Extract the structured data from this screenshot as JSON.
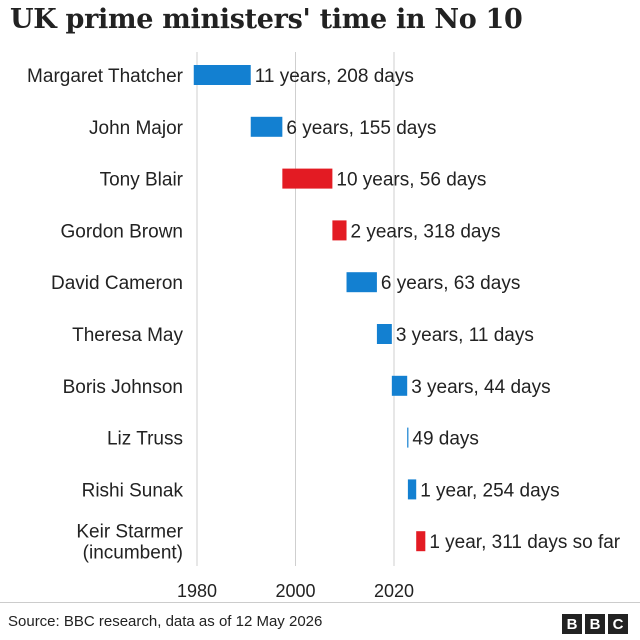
{
  "title": "UK prime ministers' time in No 10",
  "source": "Source: BBC research, data as of 12 May 2026",
  "logo": "BBC",
  "chart_data": {
    "type": "bar",
    "orientation": "horizontal-range",
    "title": "UK prime ministers' time in No 10",
    "xlabel": "",
    "ylabel": "",
    "xlim": [
      1975,
      2030
    ],
    "xticks": [
      "1980",
      "2000",
      "2020"
    ],
    "grid": true,
    "colors": {
      "Conservative": "#1380d1",
      "Labour": "#e31b23"
    },
    "bars": [
      {
        "label": [
          "Margaret Thatcher"
        ],
        "start": 1979.34,
        "end": 1990.91,
        "party": "Conservative",
        "duration": "11 years, 208 days"
      },
      {
        "label": [
          "John Major"
        ],
        "start": 1990.91,
        "end": 1997.33,
        "party": "Conservative",
        "duration": "6 years, 155 days"
      },
      {
        "label": [
          "Tony Blair"
        ],
        "start": 1997.33,
        "end": 2007.49,
        "party": "Labour",
        "duration": "10 years, 56 days"
      },
      {
        "label": [
          "Gordon Brown"
        ],
        "start": 2007.49,
        "end": 2010.36,
        "party": "Labour",
        "duration": "2 years, 318 days"
      },
      {
        "label": [
          "David Cameron"
        ],
        "start": 2010.36,
        "end": 2016.53,
        "party": "Conservative",
        "duration": "6 years, 63 days"
      },
      {
        "label": [
          "Theresa May"
        ],
        "start": 2016.53,
        "end": 2019.56,
        "party": "Conservative",
        "duration": "3 years, 11 days"
      },
      {
        "label": [
          "Boris Johnson"
        ],
        "start": 2019.56,
        "end": 2022.68,
        "party": "Conservative",
        "duration": "3 years, 44 days"
      },
      {
        "label": [
          "Liz Truss"
        ],
        "start": 2022.68,
        "end": 2022.82,
        "party": "Conservative",
        "duration": "49 days"
      },
      {
        "label": [
          "Rishi Sunak"
        ],
        "start": 2022.82,
        "end": 2024.51,
        "party": "Conservative",
        "duration": "1 year, 254 days"
      },
      {
        "label": [
          "Keir Starmer",
          "(incumbent)"
        ],
        "start": 2024.51,
        "end": 2026.36,
        "party": "Labour",
        "duration": "1 year, 311 days so far"
      }
    ]
  }
}
